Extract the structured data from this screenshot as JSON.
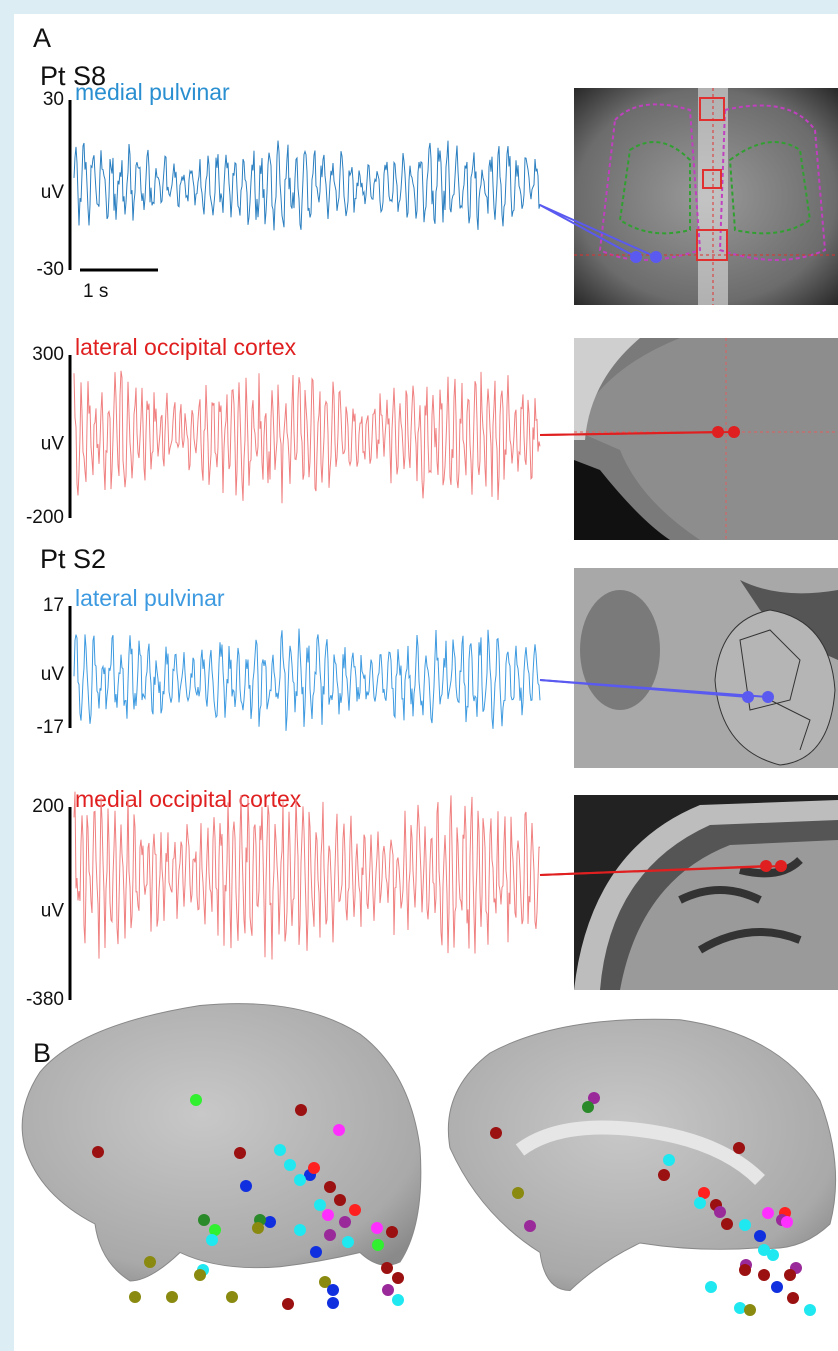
{
  "panel_a": {
    "label": "A",
    "patients": [
      {
        "name": "Pt S8",
        "traces": [
          {
            "region": "medial pulvinar",
            "unit": "uV",
            "top": "30",
            "bottom": "-30",
            "scale_bar": "1 s"
          },
          {
            "region": "lateral occipital cortex",
            "unit": "uV",
            "top": "300",
            "bottom": "-200"
          }
        ]
      },
      {
        "name": "Pt S2",
        "traces": [
          {
            "region": "lateral pulvinar",
            "unit": "uV",
            "top": "17",
            "bottom": "-17"
          },
          {
            "region": "medial occipital cortex",
            "unit": "uV",
            "top": "200",
            "bottom": "-380"
          }
        ]
      }
    ]
  },
  "panel_b": {
    "label": "B"
  }
}
